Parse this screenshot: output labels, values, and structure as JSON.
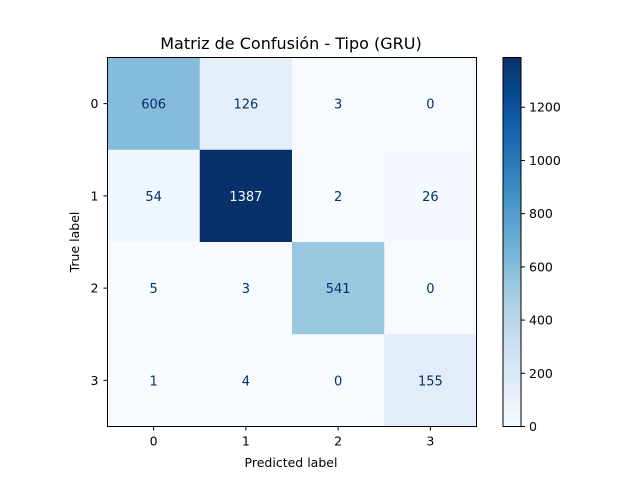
{
  "chart_data": {
    "type": "heatmap",
    "title": "Matriz de Confusión - Tipo (GRU)",
    "xlabel": "Predicted label",
    "ylabel": "True label",
    "x_categories": [
      "0",
      "1",
      "2",
      "3"
    ],
    "y_categories": [
      "0",
      "1",
      "2",
      "3"
    ],
    "matrix": [
      [
        606,
        126,
        3,
        0
      ],
      [
        54,
        1387,
        2,
        26
      ],
      [
        5,
        3,
        541,
        0
      ],
      [
        1,
        4,
        0,
        155
      ]
    ],
    "colormap": "Blues",
    "colorbar": {
      "min": 0,
      "max": 1387,
      "ticks": [
        0,
        200,
        400,
        600,
        800,
        1000,
        1200
      ]
    },
    "colors": {
      "low": "#f7fbff",
      "high": "#08306b",
      "light_text": "#f7fbff",
      "dark_text": "#08306b"
    },
    "grid": false
  }
}
